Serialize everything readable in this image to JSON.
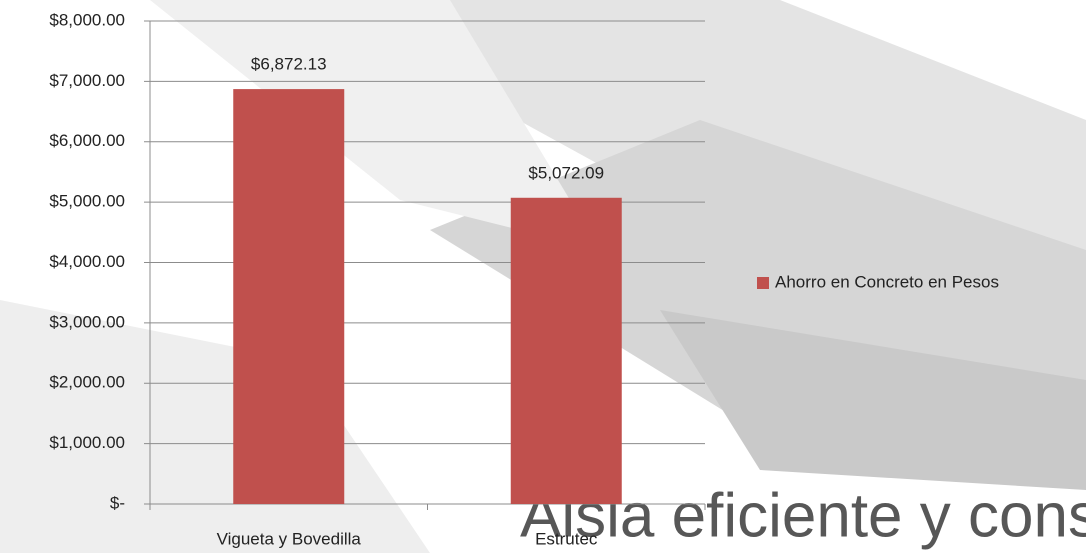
{
  "chart_data": {
    "type": "bar",
    "categories": [
      "Vigueta y Bovedilla",
      "Estrutec"
    ],
    "series": [
      {
        "name": "Ahorro en Concreto en Pesos",
        "color": "#c0504d",
        "values": [
          6872.13,
          5072.09
        ],
        "value_labels": [
          "$6,872.13",
          "$5,072.09"
        ]
      }
    ],
    "ylim": [
      0,
      8000
    ],
    "yticks": [
      {
        "value": 0,
        "label": "$-"
      },
      {
        "value": 1000,
        "label": "$1,000.00"
      },
      {
        "value": 2000,
        "label": "$2,000.00"
      },
      {
        "value": 3000,
        "label": "$3,000.00"
      },
      {
        "value": 4000,
        "label": "$4,000.00"
      },
      {
        "value": 5000,
        "label": "$5,000.00"
      },
      {
        "value": 6000,
        "label": "$6,000.00"
      },
      {
        "value": 7000,
        "label": "$7,000.00"
      },
      {
        "value": 8000,
        "label": "$8,000.00"
      }
    ],
    "grid": true,
    "legend": "right",
    "background_text": "Aisla eficiente y const"
  }
}
